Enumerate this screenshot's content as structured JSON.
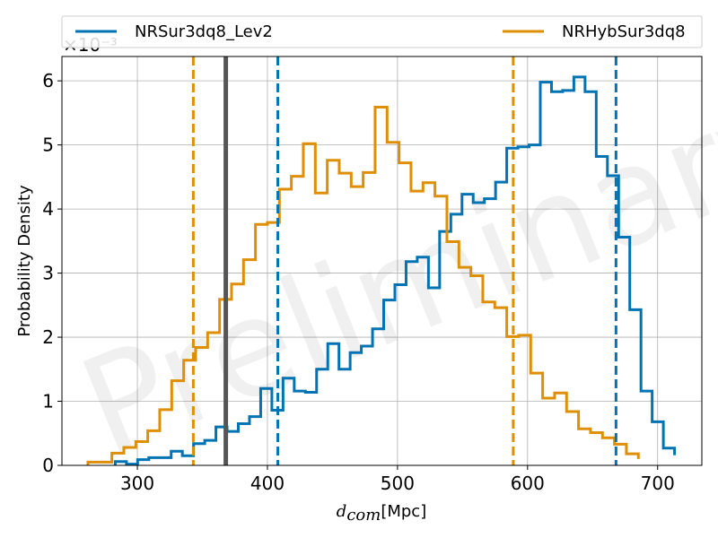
{
  "chart_data": {
    "type": "histogram",
    "xlabel": "d_com [Mpc]",
    "xlabel_parts": {
      "symbol": "d",
      "subscript": "com",
      "unit": "[Mpc]"
    },
    "ylabel": "Probability Density",
    "y_offset": "×10⁻³",
    "watermark": "Preliminary",
    "xlim": [
      242,
      734
    ],
    "ylim": [
      0,
      6.38
    ],
    "xticks": [
      300,
      400,
      500,
      600,
      700
    ],
    "yticks": [
      0,
      1,
      2,
      3,
      4,
      5,
      6
    ],
    "grid": true,
    "legend_placement": "top, above plot, two columns",
    "series": [
      {
        "name": "NRSur3dq8_Lev2",
        "color": "#0173b2",
        "bin_edges": [
          283.0,
          291.6,
          300.2,
          308.8,
          317.4,
          326.0,
          334.6,
          343.2,
          351.8,
          360.4,
          369.0,
          377.6,
          386.2,
          394.8,
          403.4,
          412.0,
          420.6,
          429.2,
          437.8,
          446.4,
          455.0,
          463.6,
          472.2,
          480.8,
          489.4,
          498.0,
          506.6,
          515.2,
          523.8,
          532.4,
          541.0,
          549.6,
          558.2,
          566.8,
          575.4,
          584.0,
          592.6,
          601.2,
          609.8,
          618.4,
          627.0,
          635.6,
          644.2,
          652.8,
          661.4,
          670.0,
          678.6,
          687.2,
          695.8,
          704.4,
          713.0
        ],
        "values": [
          0.06,
          0.02,
          0.09,
          0.12,
          0.12,
          0.22,
          0.15,
          0.34,
          0.39,
          0.6,
          0.53,
          0.65,
          0.76,
          1.2,
          0.86,
          1.36,
          1.16,
          1.14,
          1.5,
          1.9,
          1.5,
          1.76,
          1.86,
          2.13,
          2.58,
          2.82,
          3.18,
          3.25,
          2.77,
          3.65,
          3.92,
          4.23,
          4.1,
          4.16,
          4.42,
          4.95,
          4.97,
          5.0,
          5.98,
          5.83,
          5.85,
          6.06,
          5.83,
          4.82,
          4.52,
          3.56,
          2.43,
          1.16,
          0.68,
          0.27,
          0.16
        ],
        "credible_interval": [
          408,
          668
        ]
      },
      {
        "name": "NRHybSur3dq8",
        "color": "#de8f05",
        "bin_edges": [
          262.0,
          271.2,
          280.4,
          289.6,
          298.8,
          308.0,
          317.2,
          326.4,
          335.6,
          344.8,
          354.0,
          363.2,
          372.4,
          381.6,
          390.8,
          400.0,
          409.2,
          418.4,
          427.6,
          436.8,
          446.0,
          455.2,
          464.4,
          473.6,
          482.8,
          492.0,
          501.2,
          510.4,
          519.6,
          528.8,
          538.0,
          547.2,
          556.4,
          565.6,
          574.8,
          584.0,
          593.2,
          602.4,
          611.6,
          620.8,
          630.0,
          639.2,
          648.4,
          657.6,
          666.8,
          676.0,
          685.2
        ],
        "values": [
          0.05,
          0.05,
          0.19,
          0.28,
          0.37,
          0.54,
          0.87,
          1.32,
          1.64,
          1.84,
          2.07,
          2.59,
          2.83,
          3.21,
          3.76,
          3.79,
          4.31,
          4.51,
          5.02,
          4.25,
          4.76,
          4.56,
          4.35,
          4.57,
          5.59,
          5.04,
          4.72,
          4.28,
          4.41,
          4.2,
          3.49,
          3.09,
          2.96,
          2.55,
          2.46,
          2.01,
          2.03,
          1.44,
          1.05,
          1.13,
          0.84,
          0.57,
          0.51,
          0.43,
          0.33,
          0.18,
          0.1
        ],
        "credible_interval": [
          343,
          589
        ]
      }
    ],
    "vertical_lines": [
      {
        "x": 368,
        "color": "#555555",
        "style": "solid"
      }
    ]
  }
}
